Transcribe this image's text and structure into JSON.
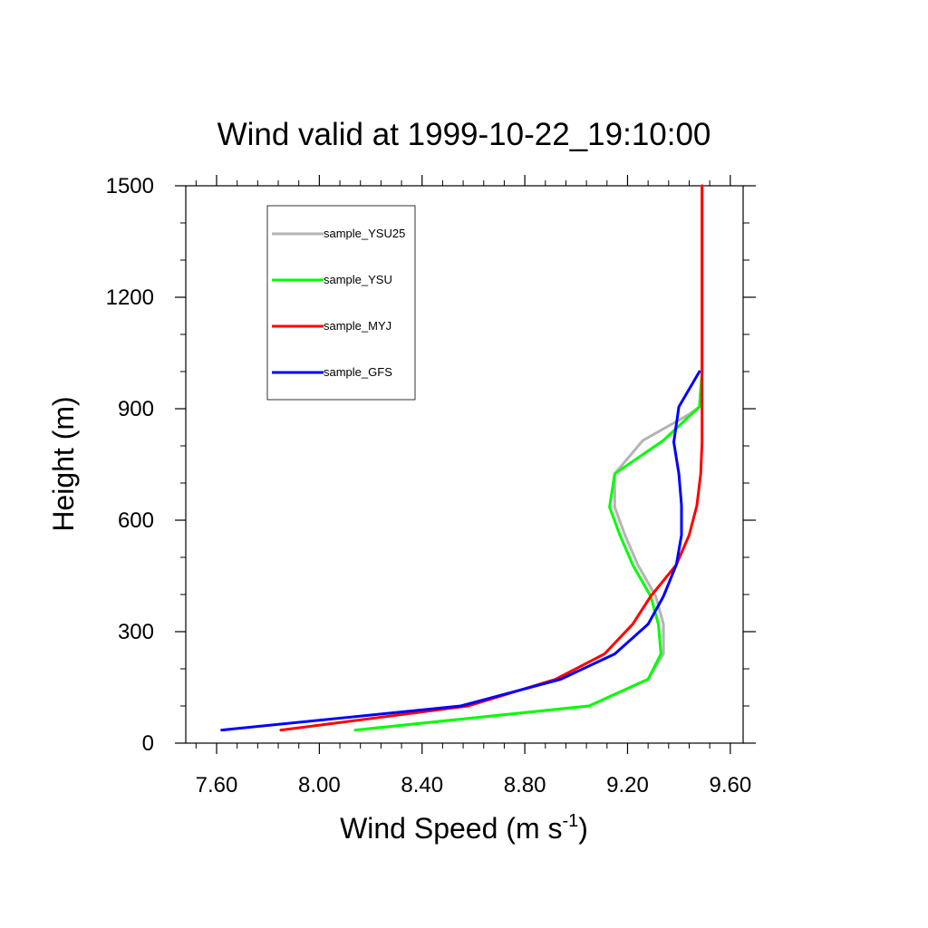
{
  "chart_data": {
    "type": "line",
    "title": "Wind valid at 1999-10-22_19:10:00",
    "xlabel": {
      "text": "Wind Speed (m s",
      "superscript": "-1",
      "suffix": ")"
    },
    "ylabel": "Height (m)",
    "xlim": [
      7.48,
      9.65
    ],
    "ylim": [
      0,
      1500
    ],
    "x_ticks": [
      7.6,
      8.0,
      8.4,
      8.8,
      9.2,
      9.6
    ],
    "x_tick_labels": [
      "7.60",
      "8.00",
      "8.40",
      "8.80",
      "9.20",
      "9.60"
    ],
    "y_ticks": [
      0,
      300,
      600,
      900,
      1200,
      1500
    ],
    "y_tick_labels": [
      "0",
      "300",
      "600",
      "900",
      "1200",
      "1500"
    ],
    "grid": false,
    "legend_position": "top-left",
    "series": [
      {
        "name": "sample_YSU25",
        "color": "#b4b4b4",
        "points": [
          [
            8.14,
            35
          ],
          [
            9.05,
            100
          ],
          [
            9.28,
            172
          ],
          [
            9.34,
            240
          ],
          [
            9.34,
            320
          ],
          [
            9.31,
            395
          ],
          [
            9.24,
            480
          ],
          [
            9.19,
            560
          ],
          [
            9.15,
            635
          ],
          [
            9.15,
            725
          ],
          [
            9.26,
            815
          ],
          [
            9.44,
            885
          ],
          [
            9.48,
            905
          ],
          [
            9.49,
            1000
          ],
          [
            9.49,
            1500
          ]
        ]
      },
      {
        "name": "sample_YSU",
        "color": "#00ff00",
        "points": [
          [
            8.14,
            35
          ],
          [
            9.05,
            100
          ],
          [
            9.28,
            172
          ],
          [
            9.33,
            240
          ],
          [
            9.32,
            320
          ],
          [
            9.29,
            395
          ],
          [
            9.22,
            480
          ],
          [
            9.17,
            560
          ],
          [
            9.13,
            635
          ],
          [
            9.15,
            725
          ],
          [
            9.34,
            815
          ],
          [
            9.48,
            905
          ],
          [
            9.49,
            1000
          ],
          [
            9.49,
            1500
          ]
        ]
      },
      {
        "name": "sample_MYJ",
        "color": "#ff0000",
        "points": [
          [
            7.85,
            35
          ],
          [
            8.58,
            100
          ],
          [
            8.92,
            172
          ],
          [
            9.11,
            240
          ],
          [
            9.22,
            320
          ],
          [
            9.29,
            395
          ],
          [
            9.39,
            480
          ],
          [
            9.44,
            560
          ],
          [
            9.47,
            640
          ],
          [
            9.485,
            725
          ],
          [
            9.49,
            810
          ],
          [
            9.49,
            900
          ],
          [
            9.49,
            1000
          ],
          [
            9.49,
            1500
          ]
        ]
      },
      {
        "name": "sample_GFS",
        "color": "#0000ff",
        "points": [
          [
            7.62,
            35
          ],
          [
            8.55,
            100
          ],
          [
            8.94,
            172
          ],
          [
            9.15,
            240
          ],
          [
            9.28,
            320
          ],
          [
            9.34,
            395
          ],
          [
            9.39,
            480
          ],
          [
            9.41,
            560
          ],
          [
            9.41,
            640
          ],
          [
            9.4,
            725
          ],
          [
            9.38,
            810
          ],
          [
            9.4,
            905
          ],
          [
            9.48,
            1000
          ]
        ]
      }
    ]
  }
}
